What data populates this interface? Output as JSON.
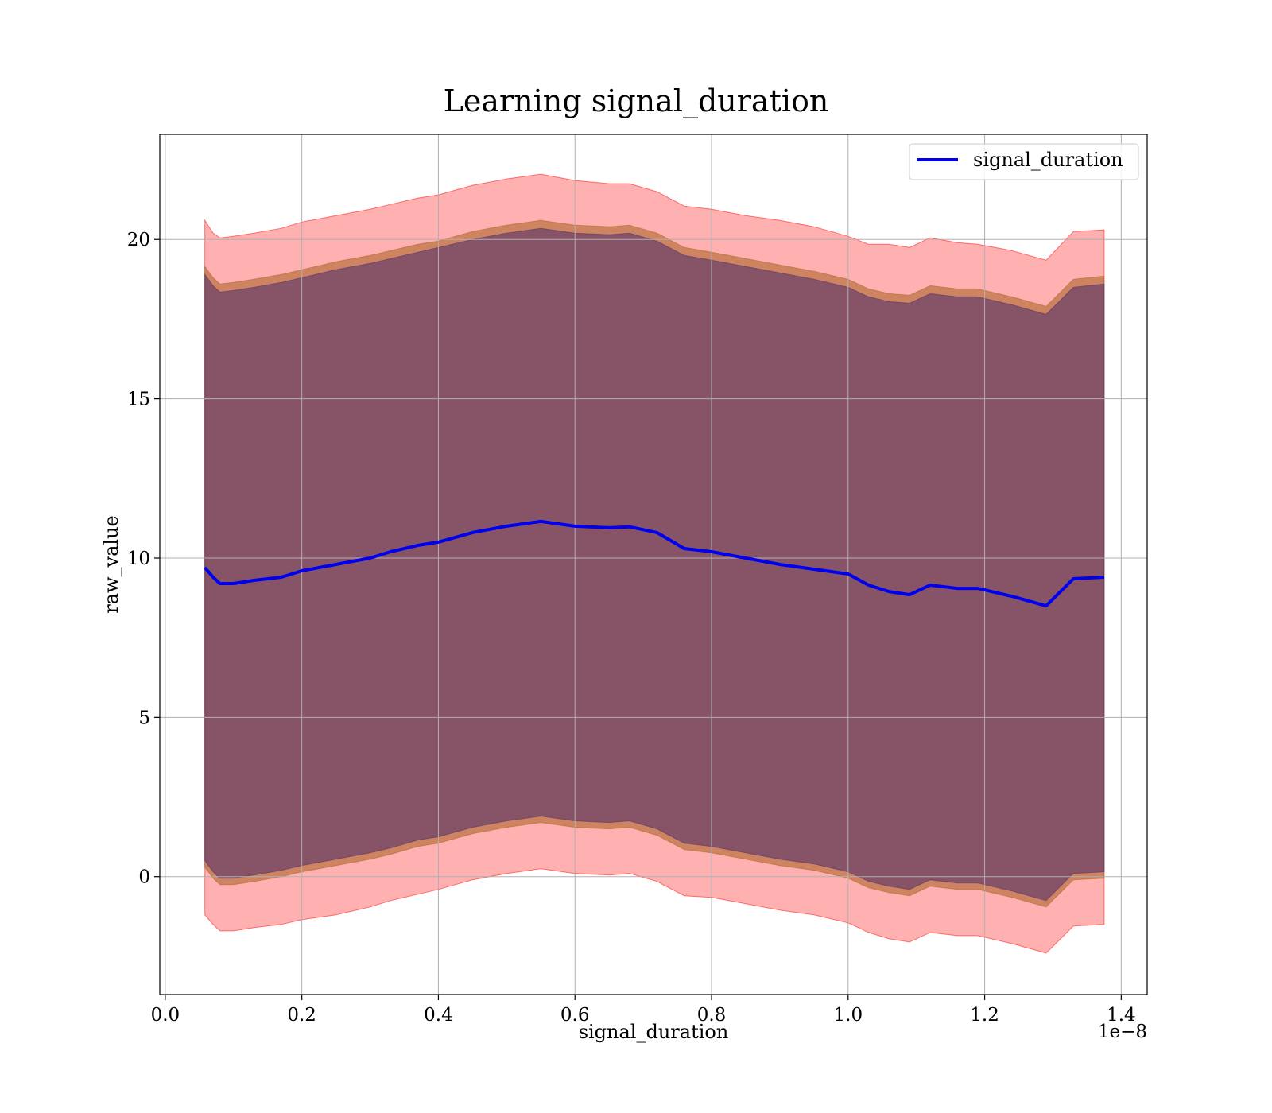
{
  "chart_data": {
    "type": "line",
    "title": "Learning signal_duration",
    "xlabel": "signal_duration",
    "ylabel": "raw_value",
    "x_offset_label": "1e−8",
    "xlim": [
      -0.008,
      1.438
    ],
    "ylim": [
      -3.7,
      23.3
    ],
    "x_ticks": [
      0.0,
      0.2,
      0.4,
      0.6,
      0.8,
      1.0,
      1.2,
      1.4
    ],
    "x_tick_labels": [
      "0.0",
      "0.2",
      "0.4",
      "0.6",
      "0.8",
      "1.0",
      "1.2",
      "1.4"
    ],
    "y_ticks": [
      0,
      5,
      10,
      15,
      20
    ],
    "y_tick_labels": [
      "0",
      "5",
      "10",
      "15",
      "20"
    ],
    "grid": true,
    "legend_position": "top-right",
    "colors": {
      "line": "#0000ee",
      "outer_band": "#ff0000",
      "middle_band": "#a5611f",
      "inner_band": "#4b2c6e"
    },
    "x": [
      0.058,
      0.07,
      0.08,
      0.1,
      0.13,
      0.17,
      0.2,
      0.25,
      0.3,
      0.33,
      0.37,
      0.4,
      0.45,
      0.5,
      0.55,
      0.6,
      0.65,
      0.68,
      0.72,
      0.76,
      0.8,
      0.85,
      0.9,
      0.95,
      1.0,
      1.03,
      1.06,
      1.09,
      1.12,
      1.16,
      1.19,
      1.24,
      1.29,
      1.33,
      1.375
    ],
    "series": [
      {
        "name": "signal_duration",
        "values": [
          9.7,
          9.4,
          9.2,
          9.2,
          9.3,
          9.4,
          9.6,
          9.8,
          10.0,
          10.2,
          10.4,
          10.5,
          10.8,
          11.0,
          11.15,
          11.0,
          10.95,
          10.98,
          10.8,
          10.3,
          10.2,
          10.0,
          9.8,
          9.65,
          9.5,
          9.15,
          8.95,
          8.85,
          9.15,
          9.05,
          9.05,
          8.8,
          8.5,
          9.35,
          9.4
        ],
        "bands": [
          {
            "upper": [
              20.6,
              20.2,
              20.05,
              20.1,
              20.2,
              20.35,
              20.55,
              20.75,
              20.95,
              21.1,
              21.3,
              21.4,
              21.7,
              21.9,
              22.05,
              21.85,
              21.75,
              21.75,
              21.5,
              21.05,
              20.95,
              20.75,
              20.6,
              20.4,
              20.1,
              19.85,
              19.85,
              19.75,
              20.05,
              19.9,
              19.85,
              19.65,
              19.35,
              20.25,
              20.3
            ],
            "lower": [
              -1.2,
              -1.5,
              -1.7,
              -1.7,
              -1.6,
              -1.5,
              -1.35,
              -1.2,
              -0.95,
              -0.75,
              -0.55,
              -0.4,
              -0.1,
              0.1,
              0.25,
              0.1,
              0.05,
              0.1,
              -0.15,
              -0.6,
              -0.65,
              -0.85,
              -1.05,
              -1.2,
              -1.45,
              -1.75,
              -1.95,
              -2.05,
              -1.75,
              -1.85,
              -1.85,
              -2.1,
              -2.4,
              -1.55,
              -1.5
            ]
          },
          {
            "upper": [
              19.15,
              18.8,
              18.6,
              18.65,
              18.75,
              18.9,
              19.05,
              19.3,
              19.5,
              19.65,
              19.85,
              19.95,
              20.25,
              20.45,
              20.6,
              20.45,
              20.4,
              20.45,
              20.2,
              19.75,
              19.6,
              19.4,
              19.2,
              19.0,
              18.75,
              18.45,
              18.3,
              18.25,
              18.55,
              18.45,
              18.45,
              18.2,
              17.9,
              18.75,
              18.85
            ],
            "lower": [
              0.3,
              -0.05,
              -0.25,
              -0.25,
              -0.15,
              0.0,
              0.15,
              0.35,
              0.55,
              0.7,
              0.95,
              1.05,
              1.35,
              1.55,
              1.7,
              1.55,
              1.5,
              1.55,
              1.3,
              0.85,
              0.75,
              0.55,
              0.35,
              0.2,
              -0.05,
              -0.35,
              -0.5,
              -0.6,
              -0.3,
              -0.4,
              -0.4,
              -0.65,
              -0.95,
              -0.1,
              -0.05
            ]
          },
          {
            "upper": [
              18.9,
              18.55,
              18.35,
              18.4,
              18.5,
              18.65,
              18.8,
              19.05,
              19.25,
              19.4,
              19.6,
              19.75,
              20.0,
              20.2,
              20.35,
              20.2,
              20.15,
              20.2,
              19.95,
              19.5,
              19.35,
              19.15,
              18.95,
              18.75,
              18.5,
              18.2,
              18.05,
              18.0,
              18.3,
              18.2,
              18.2,
              17.95,
              17.65,
              18.5,
              18.6
            ],
            "lower": [
              0.5,
              0.15,
              -0.05,
              -0.05,
              0.05,
              0.2,
              0.35,
              0.55,
              0.75,
              0.9,
              1.15,
              1.25,
              1.55,
              1.75,
              1.9,
              1.75,
              1.7,
              1.75,
              1.5,
              1.05,
              0.95,
              0.75,
              0.55,
              0.4,
              0.15,
              -0.15,
              -0.3,
              -0.4,
              -0.1,
              -0.2,
              -0.2,
              -0.45,
              -0.75,
              0.1,
              0.15
            ]
          }
        ]
      }
    ]
  }
}
